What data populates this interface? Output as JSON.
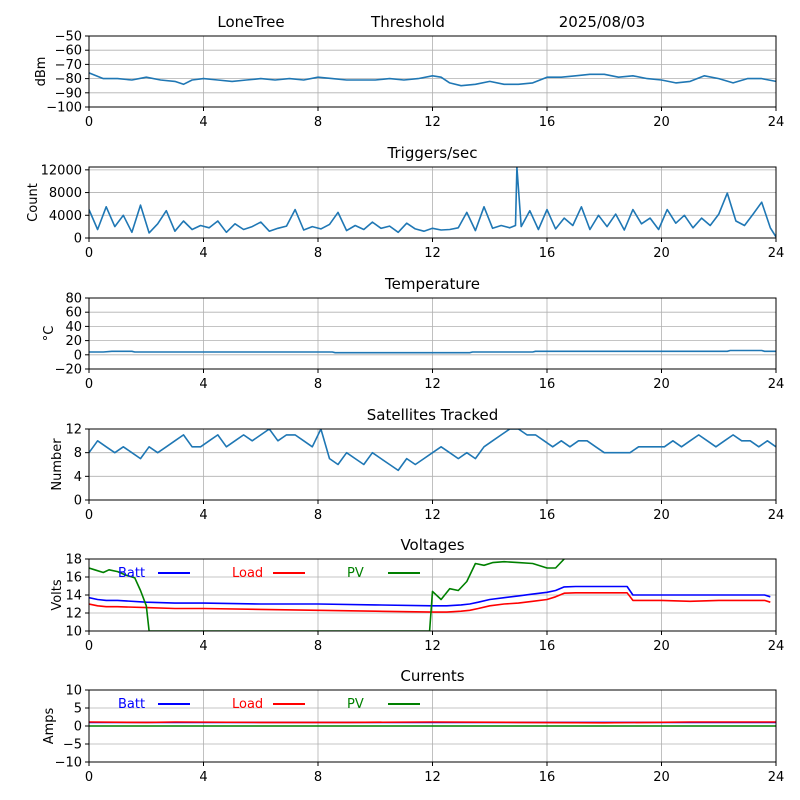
{
  "header": {
    "station": "LoneTree",
    "mode": "Threshold",
    "date": "2025/08/03"
  },
  "colors": {
    "series_default": "#1f77b4",
    "batt": "#0000ff",
    "load": "#ff0000",
    "pv": "#008000",
    "grid": "#b0b0b0"
  },
  "chart_data": [
    {
      "type": "line",
      "title": "",
      "ylabel": "dBm",
      "xlim": [
        0,
        24
      ],
      "ylim": [
        -100,
        -50
      ],
      "xticks": [
        0,
        4,
        8,
        12,
        16,
        20,
        24
      ],
      "yticks": [
        -100,
        -90,
        -80,
        -70,
        -60,
        -50
      ],
      "grid": true,
      "series": [
        {
          "color": "#1f77b4",
          "x": [
            0,
            0.5,
            1,
            1.5,
            2,
            2.5,
            3,
            3.3,
            3.6,
            4,
            4.5,
            5,
            5.5,
            6,
            6.5,
            7,
            7.5,
            8,
            8.5,
            9,
            9.5,
            10,
            10.5,
            11,
            11.5,
            12,
            12.3,
            12.6,
            13,
            13.5,
            14,
            14.5,
            15,
            15.5,
            16,
            16.5,
            17,
            17.5,
            18,
            18.5,
            19,
            19.5,
            20,
            20.5,
            21,
            21.5,
            22,
            22.5,
            23,
            23.5,
            24
          ],
          "y": [
            -76,
            -80,
            -80,
            -81,
            -79,
            -81,
            -82,
            -84,
            -81,
            -80,
            -81,
            -82,
            -81,
            -80,
            -81,
            -80,
            -81,
            -79,
            -80,
            -81,
            -81,
            -81,
            -80,
            -81,
            -80,
            -78,
            -79,
            -83,
            -85,
            -84,
            -82,
            -84,
            -84,
            -83,
            -79,
            -79,
            -78,
            -77,
            -77,
            -79,
            -78,
            -80,
            -81,
            -83,
            -82,
            -78,
            -80,
            -83,
            -80,
            -80,
            -82
          ]
        }
      ]
    },
    {
      "type": "line",
      "title": "Triggers/sec",
      "ylabel": "Count",
      "xlim": [
        0,
        24
      ],
      "ylim": [
        0,
        12500
      ],
      "xticks": [
        0,
        4,
        8,
        12,
        16,
        20,
        24
      ],
      "yticks": [
        0,
        4000,
        8000,
        12000
      ],
      "grid": true,
      "series": [
        {
          "color": "#1f77b4",
          "x": [
            0,
            0.3,
            0.6,
            0.9,
            1.2,
            1.5,
            1.8,
            2.1,
            2.4,
            2.7,
            3,
            3.3,
            3.6,
            3.9,
            4.2,
            4.5,
            4.8,
            5.1,
            5.4,
            5.7,
            6,
            6.3,
            6.6,
            6.9,
            7.2,
            7.5,
            7.8,
            8.1,
            8.4,
            8.7,
            9,
            9.3,
            9.6,
            9.9,
            10.2,
            10.5,
            10.8,
            11.1,
            11.4,
            11.7,
            12,
            12.3,
            12.6,
            12.9,
            13.2,
            13.5,
            13.8,
            14.1,
            14.4,
            14.7,
            14.9,
            14.95,
            15.1,
            15.4,
            15.7,
            16,
            16.3,
            16.6,
            16.9,
            17.2,
            17.5,
            17.8,
            18.1,
            18.4,
            18.7,
            19,
            19.3,
            19.6,
            19.9,
            20.2,
            20.5,
            20.8,
            21.1,
            21.4,
            21.7,
            22,
            22.3,
            22.6,
            22.9,
            23.2,
            23.5,
            23.8,
            24
          ],
          "y": [
            5000,
            1500,
            5500,
            2000,
            4000,
            1000,
            5800,
            900,
            2500,
            4800,
            1200,
            3000,
            1500,
            2200,
            1800,
            3000,
            1000,
            2500,
            1500,
            2000,
            2800,
            1200,
            1700,
            2100,
            5000,
            1400,
            2000,
            1600,
            2400,
            4500,
            1300,
            2200,
            1500,
            2800,
            1700,
            2100,
            1000,
            2600,
            1600,
            1200,
            1700,
            1400,
            1500,
            1800,
            4500,
            1300,
            5500,
            1700,
            2200,
            1800,
            2200,
            12500,
            2000,
            4800,
            1500,
            5000,
            1600,
            3500,
            2200,
            5500,
            1500,
            4000,
            2000,
            4200,
            1400,
            5000,
            2500,
            3500,
            1500,
            5000,
            2600,
            4000,
            1800,
            3500,
            2200,
            4200,
            7900,
            3000,
            2200,
            4200,
            6300,
            1800,
            200
          ]
        }
      ]
    },
    {
      "type": "line",
      "title": "Temperature",
      "ylabel": "°C",
      "xlim": [
        0,
        24
      ],
      "ylim": [
        -20,
        80
      ],
      "xticks": [
        0,
        4,
        8,
        12,
        16,
        20,
        24
      ],
      "yticks": [
        -20,
        0,
        20,
        40,
        60,
        80
      ],
      "grid": true,
      "series": [
        {
          "color": "#1f77b4",
          "x": [
            0,
            0.5,
            0.8,
            1.5,
            1.6,
            8.5,
            8.6,
            13.3,
            13.4,
            15.5,
            15.6,
            22.3,
            22.4,
            23.5,
            23.6,
            24
          ],
          "y": [
            4,
            4,
            5,
            5,
            4,
            4,
            3,
            3,
            4,
            4,
            5,
            5,
            6,
            6,
            5,
            5
          ]
        }
      ]
    },
    {
      "type": "line",
      "title": "Satellites Tracked",
      "ylabel": "Number",
      "xlim": [
        0,
        24
      ],
      "ylim": [
        0,
        12
      ],
      "xticks": [
        0,
        4,
        8,
        12,
        16,
        20,
        24
      ],
      "yticks": [
        0,
        4,
        8,
        12
      ],
      "grid": true,
      "series": [
        {
          "color": "#1f77b4",
          "x": [
            0,
            0.3,
            0.6,
            0.9,
            1.2,
            1.5,
            1.8,
            2.1,
            2.4,
            2.7,
            3,
            3.3,
            3.6,
            3.9,
            4.2,
            4.5,
            4.8,
            5.1,
            5.4,
            5.7,
            6,
            6.3,
            6.6,
            6.9,
            7.2,
            7.5,
            7.8,
            8.1,
            8.4,
            8.7,
            9,
            9.3,
            9.6,
            9.9,
            10.2,
            10.5,
            10.8,
            11.1,
            11.4,
            11.7,
            12,
            12.3,
            12.6,
            12.9,
            13.2,
            13.5,
            13.8,
            14.1,
            14.4,
            14.7,
            15,
            15.3,
            15.6,
            15.9,
            16.2,
            16.5,
            16.8,
            17.1,
            17.4,
            17.7,
            18,
            18.3,
            18.6,
            18.9,
            19.2,
            19.5,
            19.8,
            20.1,
            20.4,
            20.7,
            21,
            21.3,
            21.6,
            21.9,
            22.2,
            22.5,
            22.8,
            23.1,
            23.4,
            23.7,
            24
          ],
          "y": [
            8,
            10,
            9,
            8,
            9,
            8,
            7,
            9,
            8,
            9,
            10,
            11,
            9,
            9,
            10,
            11,
            9,
            10,
            11,
            10,
            11,
            12,
            10,
            11,
            11,
            10,
            9,
            12,
            7,
            6,
            8,
            7,
            6,
            8,
            7,
            6,
            5,
            7,
            6,
            7,
            8,
            9,
            8,
            7,
            8,
            7,
            9,
            10,
            11,
            12,
            12,
            11,
            11,
            10,
            9,
            10,
            9,
            10,
            10,
            9,
            8,
            8,
            8,
            8,
            9,
            9,
            9,
            9,
            10,
            9,
            10,
            11,
            10,
            9,
            10,
            11,
            10,
            10,
            9,
            10,
            9
          ]
        }
      ]
    },
    {
      "type": "line",
      "title": "Voltages",
      "ylabel": "Volts",
      "xlim": [
        0,
        24
      ],
      "ylim": [
        10,
        18
      ],
      "xticks": [
        0,
        4,
        8,
        12,
        16,
        20,
        24
      ],
      "yticks": [
        10,
        12,
        14,
        16,
        18
      ],
      "grid": true,
      "legend": "top, horizontal",
      "series": [
        {
          "name": "Batt",
          "color": "#0000ff",
          "x": [
            0,
            0.3,
            0.6,
            1,
            2,
            3,
            4,
            6,
            8,
            10,
            12,
            12.5,
            13,
            13.3,
            13.6,
            14,
            14.5,
            15,
            15.5,
            16,
            16.3,
            16.6,
            17,
            18,
            18.8,
            19,
            20,
            21,
            22,
            23,
            23.6,
            23.8
          ],
          "y": [
            13.7,
            13.5,
            13.4,
            13.4,
            13.2,
            13.1,
            13.1,
            13.0,
            13.0,
            12.9,
            12.8,
            12.8,
            12.9,
            13.0,
            13.2,
            13.5,
            13.7,
            13.9,
            14.1,
            14.3,
            14.5,
            14.9,
            14.95,
            14.95,
            14.95,
            14.0,
            14.0,
            14.0,
            14.0,
            14.0,
            14.0,
            13.8
          ]
        },
        {
          "name": "Load",
          "color": "#ff0000",
          "x": [
            0,
            0.3,
            0.6,
            1,
            2,
            3,
            4,
            6,
            8,
            10,
            12,
            12.5,
            13,
            13.3,
            13.6,
            14,
            14.5,
            15,
            15.5,
            16,
            16.3,
            16.6,
            17,
            18,
            18.8,
            19,
            20,
            21,
            22,
            23,
            23.6,
            23.8
          ],
          "y": [
            13.0,
            12.8,
            12.7,
            12.7,
            12.6,
            12.5,
            12.5,
            12.4,
            12.3,
            12.2,
            12.1,
            12.1,
            12.2,
            12.3,
            12.5,
            12.8,
            13.0,
            13.1,
            13.3,
            13.5,
            13.8,
            14.2,
            14.25,
            14.25,
            14.25,
            13.4,
            13.4,
            13.3,
            13.4,
            13.4,
            13.4,
            13.2
          ]
        },
        {
          "name": "PV",
          "color": "#008000",
          "x": [
            0,
            0.2,
            0.5,
            0.7,
            1,
            1.3,
            1.6,
            1.8,
            2,
            2.1,
            11.9,
            12,
            12.3,
            12.6,
            12.9,
            13.2,
            13.5,
            13.8,
            14.1,
            14.5,
            15,
            15.5,
            16,
            16.3,
            16.6
          ],
          "y": [
            17,
            16.8,
            16.5,
            16.8,
            16.6,
            16.2,
            15.9,
            14.5,
            12.8,
            10,
            10,
            14.4,
            13.5,
            14.7,
            14.5,
            15.5,
            17.5,
            17.3,
            17.6,
            17.7,
            17.6,
            17.5,
            17.0,
            17.0,
            18.0
          ]
        }
      ]
    },
    {
      "type": "line",
      "title": "Currents",
      "ylabel": "Amps",
      "xlim": [
        0,
        24
      ],
      "ylim": [
        -10,
        10
      ],
      "xticks": [
        0,
        4,
        8,
        12,
        16,
        20,
        24
      ],
      "yticks": [
        -10,
        -5,
        0,
        5,
        10
      ],
      "grid": true,
      "legend": "top, horizontal",
      "series": [
        {
          "name": "Batt",
          "color": "#0000ff",
          "x": [
            0,
            24
          ],
          "y": [
            1.0,
            1.0
          ]
        },
        {
          "name": "Load",
          "color": "#ff0000",
          "x": [
            0,
            2,
            3,
            6,
            9,
            12,
            15,
            18,
            21,
            24
          ],
          "y": [
            1.1,
            1.0,
            1.1,
            1.0,
            1.0,
            1.1,
            1.0,
            0.9,
            1.1,
            1.1
          ]
        },
        {
          "name": "PV",
          "color": "#008000",
          "x": [
            0,
            24
          ],
          "y": [
            0.0,
            0.0
          ]
        }
      ]
    }
  ]
}
